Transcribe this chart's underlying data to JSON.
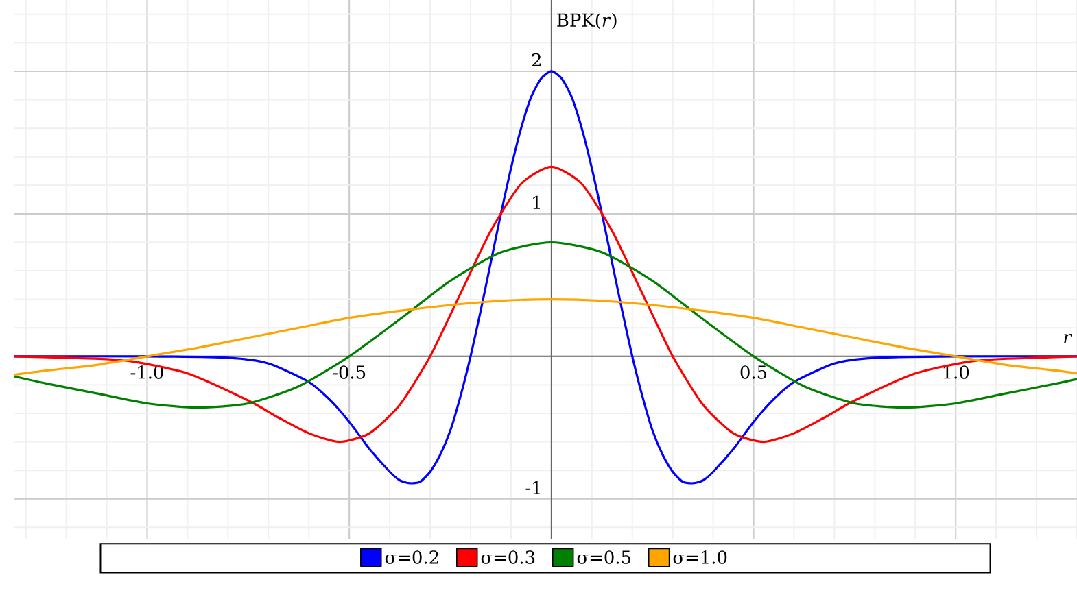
{
  "chart_data": {
    "type": "line",
    "xlabel": "*r*",
    "ylabel": "BPK(*r*)",
    "xlim": [
      -1.33,
      1.3
    ],
    "ylim": [
      -1.28,
      2.5
    ],
    "xticks": [
      {
        "value": -1,
        "label": "-1.0"
      },
      {
        "value": -0.5,
        "label": "-0.5"
      },
      {
        "value": 0.5,
        "label": "0.5"
      },
      {
        "value": 1,
        "label": "1.0"
      }
    ],
    "yticks": [
      -1,
      1,
      2
    ],
    "grid": true,
    "legend": "bottom",
    "marker": "none",
    "line_style": "solid",
    "series": [
      {
        "name": "σ=0.2",
        "color": "#0000ff",
        "x": [
          -1.33,
          -1,
          -0.8,
          -0.7,
          -0.6,
          -0.55,
          -0.5,
          -0.45,
          -0.4,
          -0.375,
          -0.35,
          -0.325,
          -0.3,
          -0.275,
          -0.25,
          -0.225,
          -0.2,
          -0.175,
          -0.15,
          -0.125,
          -0.1,
          -0.075,
          -0.05,
          -0.025,
          0,
          0.025,
          0.05,
          0.075,
          0.1,
          0.125,
          0.15,
          0.175,
          0.2,
          0.225,
          0.25,
          0.275,
          0.3,
          0.325,
          0.35,
          0.375,
          0.4,
          0.45,
          0.5,
          0.55,
          0.6,
          0.7,
          0.8,
          1,
          1.3
        ],
        "values": [
          0,
          0,
          -0.01,
          -0.05,
          -0.18,
          -0.3,
          -0.46,
          -0.65,
          -0.81,
          -0.87,
          -0.89,
          -0.88,
          -0.81,
          -0.69,
          -0.52,
          -0.28,
          0,
          0.32,
          0.66,
          1,
          1.32,
          1.6,
          1.82,
          1.95,
          2,
          1.95,
          1.82,
          1.6,
          1.32,
          1,
          0.66,
          0.32,
          0,
          -0.28,
          -0.52,
          -0.69,
          -0.81,
          -0.88,
          -0.89,
          -0.87,
          -0.81,
          -0.65,
          -0.46,
          -0.3,
          -0.18,
          -0.05,
          -0.01,
          0,
          0
        ]
      },
      {
        "name": "σ=0.3",
        "color": "#ff0000",
        "x": [
          -1.33,
          -1.2,
          -1.05,
          -0.9,
          -0.75,
          -0.675,
          -0.6,
          -0.525,
          -0.45,
          -0.375,
          -0.3,
          -0.225,
          -0.15,
          -0.075,
          0,
          0.075,
          0.15,
          0.225,
          0.3,
          0.375,
          0.45,
          0.525,
          0.6,
          0.675,
          0.75,
          0.9,
          1.05,
          1.2,
          1.3
        ],
        "values": [
          0,
          -0.01,
          -0.03,
          -0.12,
          -0.31,
          -0.43,
          -0.54,
          -0.6,
          -0.54,
          -0.34,
          0,
          0.44,
          0.88,
          1.21,
          1.33,
          1.21,
          0.88,
          0.44,
          0,
          -0.34,
          -0.54,
          -0.6,
          -0.54,
          -0.43,
          -0.31,
          -0.12,
          -0.03,
          -0.01,
          0
        ]
      },
      {
        "name": "σ=0.5",
        "color": "#008000",
        "x": [
          -1.33,
          -1.25,
          -1.125,
          -1,
          -0.875,
          -0.75,
          -0.625,
          -0.5,
          -0.375,
          -0.25,
          -0.125,
          0,
          0.125,
          0.25,
          0.375,
          0.5,
          0.625,
          0.75,
          0.875,
          1,
          1.125,
          1.25,
          1.3
        ],
        "values": [
          -0.14,
          -0.19,
          -0.26,
          -0.33,
          -0.36,
          -0.33,
          -0.21,
          0,
          0.26,
          0.53,
          0.73,
          0.8,
          0.73,
          0.53,
          0.26,
          0,
          -0.21,
          -0.33,
          -0.36,
          -0.33,
          -0.26,
          -0.19,
          -0.16
        ]
      },
      {
        "name": "σ=1.0",
        "color": "#ffa500",
        "x": [
          -1.33,
          -1.25,
          -1.125,
          -1,
          -0.875,
          -0.75,
          -0.625,
          -0.5,
          -0.375,
          -0.25,
          -0.125,
          0,
          0.125,
          0.25,
          0.375,
          0.5,
          0.625,
          0.75,
          0.875,
          1,
          1.125,
          1.25,
          1.3
        ],
        "values": [
          -0.13,
          -0.1,
          -0.06,
          0,
          0.06,
          0.13,
          0.2,
          0.27,
          0.32,
          0.36,
          0.39,
          0.4,
          0.39,
          0.36,
          0.32,
          0.27,
          0.2,
          0.13,
          0.06,
          0,
          -0.06,
          -0.1,
          -0.12
        ]
      }
    ]
  }
}
